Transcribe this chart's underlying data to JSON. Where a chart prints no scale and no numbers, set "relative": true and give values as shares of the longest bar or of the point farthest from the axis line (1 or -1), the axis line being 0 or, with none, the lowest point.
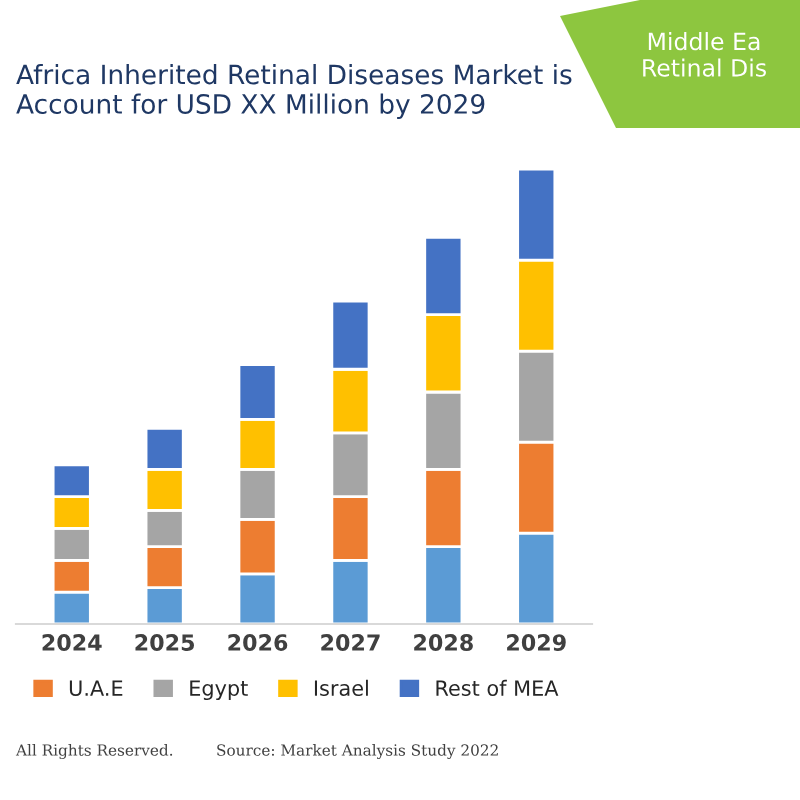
{
  "chart_data": {
    "type": "bar",
    "title": "Africa Inherited Retinal Diseases Market is\nAccount for USD XX Million by 2029",
    "relative": true,
    "stacked": true,
    "legend": "bottom",
    "categories": [
      "2024",
      "2025",
      "2026",
      "2027",
      "2028",
      "2029"
    ],
    "series": [
      {
        "color": "#5b9bd5",
        "values": [
          0.07,
          0.08,
          0.11,
          0.14,
          0.17,
          0.2
        ]
      },
      {
        "name": "U.A.E",
        "color": "#ed7d31",
        "values": [
          0.07,
          0.09,
          0.12,
          0.14,
          0.17,
          0.2
        ]
      },
      {
        "name": "Egypt",
        "color": "#a5a5a5",
        "values": [
          0.07,
          0.08,
          0.11,
          0.14,
          0.17,
          0.2
        ]
      },
      {
        "name": "Israel",
        "color": "#ffc000",
        "values": [
          0.07,
          0.09,
          0.11,
          0.14,
          0.17,
          0.2
        ]
      },
      {
        "name": "Rest of MEA",
        "color": "#4472c4",
        "values": [
          0.07,
          0.09,
          0.12,
          0.15,
          0.17,
          0.2
        ]
      }
    ],
    "annotations": [
      "Middle Ea\nRetinal Dis",
      "All Rights Reserved.",
      "Source: Market Analysis Study 2022"
    ]
  }
}
